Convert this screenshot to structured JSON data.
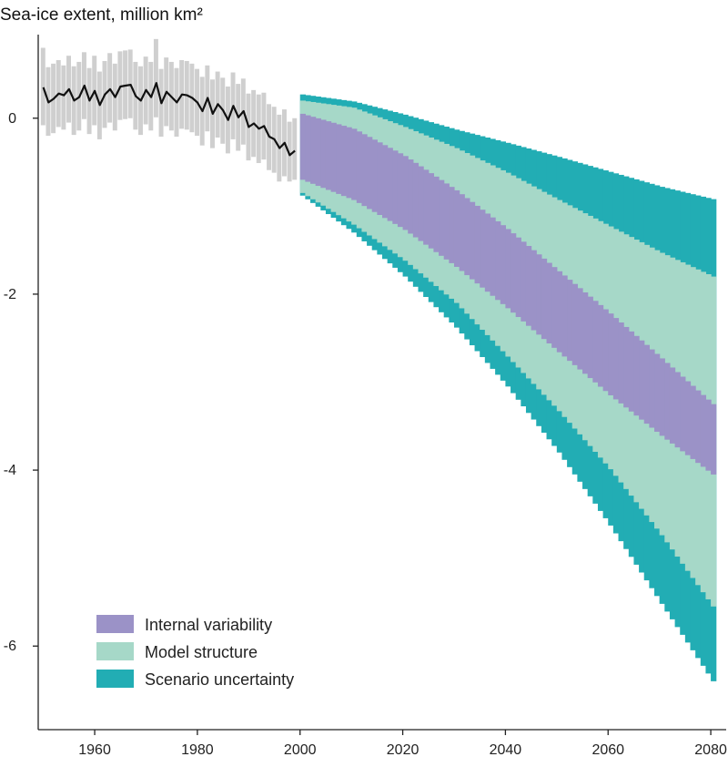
{
  "chart_data": {
    "type": "area",
    "title": "Sea-ice extent, million km²",
    "xlabel": "",
    "ylabel": "Sea-ice extent, million km²",
    "xlim": [
      1949,
      2083
    ],
    "ylim": [
      -6.95,
      0.95
    ],
    "x_ticks": [
      1960,
      1980,
      2000,
      2020,
      2040,
      2060,
      2080
    ],
    "y_ticks": [
      0,
      -2,
      -4,
      -6
    ],
    "grid": false,
    "legend_position": "bottom-left",
    "colors": {
      "observed_line": "#111111",
      "observed_range": "#cfcfcf",
      "internal_variability": "#9b92c7",
      "model_structure": "#a6d8c8",
      "scenario_uncertainty": "#22adb4"
    },
    "legend": [
      {
        "label": "Internal variability",
        "color": "#9b92c7"
      },
      {
        "label": "Model structure",
        "color": "#a6d8c8"
      },
      {
        "label": "Scenario uncertainty",
        "color": "#22adb4"
      }
    ],
    "observed": {
      "x": [
        1950,
        1951,
        1952,
        1953,
        1954,
        1955,
        1956,
        1957,
        1958,
        1959,
        1960,
        1961,
        1962,
        1963,
        1964,
        1965,
        1966,
        1967,
        1968,
        1969,
        1970,
        1971,
        1972,
        1973,
        1974,
        1975,
        1976,
        1977,
        1978,
        1979,
        1980,
        1981,
        1982,
        1983,
        1984,
        1985,
        1986,
        1987,
        1988,
        1989,
        1990,
        1991,
        1992,
        1993,
        1994,
        1995,
        1996,
        1997,
        1998,
        1999
      ],
      "mean": [
        0.35,
        0.18,
        0.22,
        0.28,
        0.26,
        0.33,
        0.2,
        0.24,
        0.37,
        0.2,
        0.31,
        0.15,
        0.27,
        0.33,
        0.24,
        0.36,
        0.37,
        0.38,
        0.25,
        0.2,
        0.32,
        0.24,
        0.4,
        0.17,
        0.3,
        0.24,
        0.18,
        0.27,
        0.26,
        0.23,
        0.18,
        0.08,
        0.23,
        0.05,
        0.16,
        0.09,
        -0.02,
        0.14,
        0.01,
        0.08,
        -0.1,
        -0.06,
        -0.12,
        -0.09,
        -0.21,
        -0.24,
        -0.34,
        -0.28,
        -0.42,
        -0.37
      ],
      "upper": [
        0.8,
        0.58,
        0.62,
        0.66,
        0.6,
        0.71,
        0.59,
        0.64,
        0.75,
        0.57,
        0.71,
        0.53,
        0.65,
        0.74,
        0.62,
        0.76,
        0.77,
        0.78,
        0.64,
        0.59,
        0.7,
        0.64,
        0.9,
        0.56,
        0.69,
        0.64,
        0.57,
        0.66,
        0.65,
        0.62,
        0.56,
        0.47,
        0.6,
        0.44,
        0.53,
        0.46,
        0.36,
        0.52,
        0.39,
        0.45,
        0.28,
        0.32,
        0.27,
        0.29,
        0.16,
        0.13,
        0.04,
        0.1,
        -0.04,
        0.0
      ],
      "lower": [
        -0.08,
        -0.2,
        -0.17,
        -0.1,
        -0.13,
        -0.05,
        -0.19,
        -0.14,
        -0.01,
        -0.18,
        -0.08,
        -0.24,
        -0.11,
        -0.05,
        -0.14,
        -0.02,
        -0.01,
        0.0,
        -0.13,
        -0.19,
        -0.07,
        -0.14,
        0.01,
        -0.21,
        -0.09,
        -0.14,
        -0.21,
        -0.12,
        -0.13,
        -0.16,
        -0.2,
        -0.31,
        -0.15,
        -0.34,
        -0.22,
        -0.29,
        -0.4,
        -0.24,
        -0.37,
        -0.3,
        -0.48,
        -0.44,
        -0.51,
        -0.47,
        -0.59,
        -0.62,
        -0.72,
        -0.66,
        -0.72,
        -0.7
      ]
    },
    "projection": {
      "x": [
        2000,
        2010,
        2020,
        2030,
        2040,
        2050,
        2060,
        2070,
        2080
      ],
      "scenario_upper": [
        0.27,
        0.19,
        0.04,
        -0.13,
        -0.28,
        -0.44,
        -0.61,
        -0.78,
        -0.92
      ],
      "model_upper": [
        0.2,
        0.12,
        -0.1,
        -0.34,
        -0.62,
        -0.93,
        -1.23,
        -1.53,
        -1.8
      ],
      "internal_upper": [
        0.05,
        -0.12,
        -0.43,
        -0.82,
        -1.26,
        -1.74,
        -2.22,
        -2.73,
        -3.25
      ],
      "internal_lower": [
        -0.7,
        -0.93,
        -1.27,
        -1.69,
        -2.16,
        -2.66,
        -3.15,
        -3.61,
        -4.05
      ],
      "model_lower": [
        -0.85,
        -1.21,
        -1.62,
        -2.1,
        -2.71,
        -3.33,
        -3.99,
        -4.74,
        -5.55
      ],
      "scenario_lower": [
        -0.88,
        -1.3,
        -1.8,
        -2.38,
        -3.05,
        -3.8,
        -4.63,
        -5.52,
        -6.4
      ]
    }
  }
}
